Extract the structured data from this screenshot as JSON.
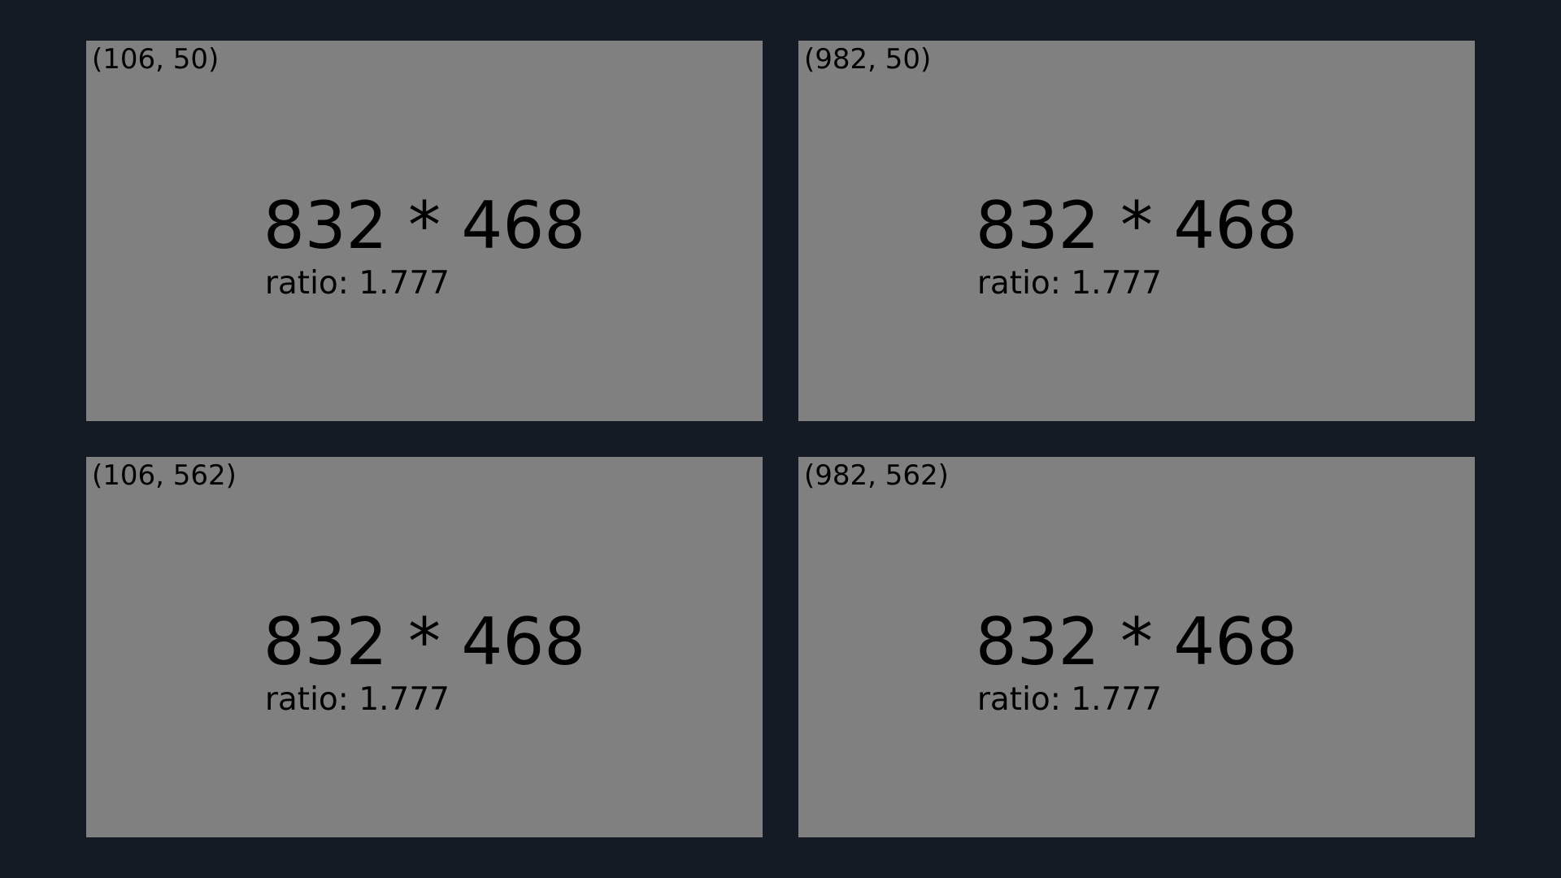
{
  "panels": [
    {
      "coord": "(106, 50)",
      "dims": "832 * 468",
      "ratio": "ratio: 1.777"
    },
    {
      "coord": "(982, 50)",
      "dims": "832 * 468",
      "ratio": "ratio: 1.777"
    },
    {
      "coord": "(106, 562)",
      "dims": "832 * 468",
      "ratio": "ratio: 1.777"
    },
    {
      "coord": "(982, 562)",
      "dims": "832 * 468",
      "ratio": "ratio: 1.777"
    }
  ],
  "colors": {
    "background": "#141b24",
    "panel": "#808080",
    "text": "#000000"
  }
}
